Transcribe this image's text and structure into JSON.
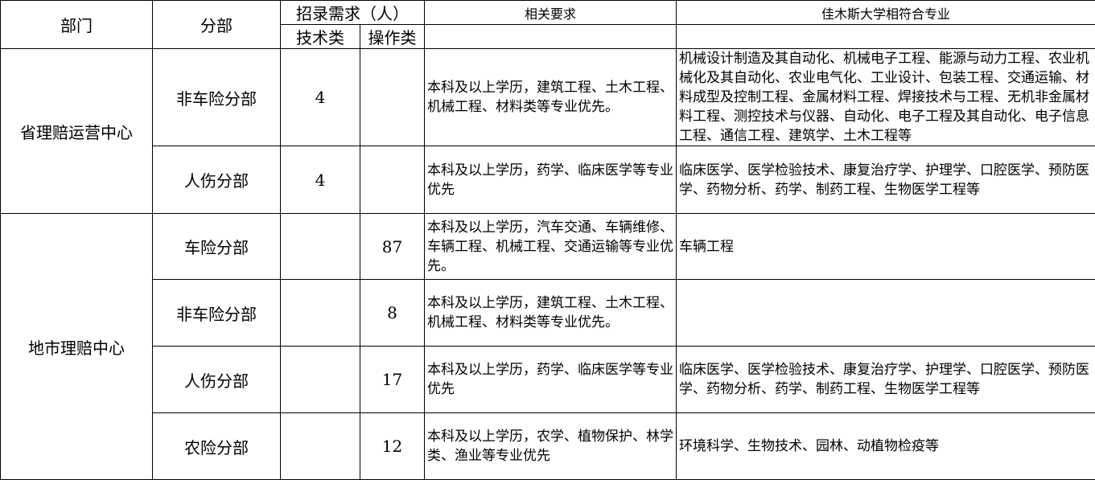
{
  "header": {
    "dept": "部门",
    "branch": "分部",
    "demand": "招录需求（人）",
    "tech": "技术类",
    "ops": "操作类",
    "requirements": "相关要求",
    "majors": "佳木斯大学相符合专业"
  },
  "groups": [
    {
      "dept": "省理赔运营中心",
      "rows": [
        {
          "branch": "非车险分部",
          "tech": "4",
          "ops": "",
          "requirements": "本科及以上学历，建筑工程、土木工程、机械工程、材料类等专业优先。",
          "majors": "机械设计制造及其自动化、机械电子工程、能源与动力工程、农业机械化及其自动化、农业电气化、工业设计、包装工程、交通运输、材料成型及控制工程、金属材料工程、焊接技术与工程、无机非金属材料工程、测控技术与仪器、自动化、电子工程及其自动化、电子信息工程、通信工程、建筑学、土木工程等"
        },
        {
          "branch": "人伤分部",
          "tech": "4",
          "ops": "",
          "requirements": "本科及以上学历，药学、临床医学等专业优先",
          "majors": "临床医学、医学检验技术、康复治疗学、护理学、口腔医学、预防医学、药物分析、药学、制药工程、生物医学工程等"
        }
      ]
    },
    {
      "dept": "地市理赔中心",
      "rows": [
        {
          "branch": "车险分部",
          "tech": "",
          "ops": "87",
          "requirements": "本科及以上学历，汽车交通、车辆维修、车辆工程、机械工程、交通运输等专业优先。",
          "majors": "车辆工程"
        },
        {
          "branch": "非车险分部",
          "tech": "",
          "ops": "8",
          "requirements": "本科及以上学历，建筑工程、土木工程、机械工程、材料类等专业优先。",
          "majors": ""
        },
        {
          "branch": "人伤分部",
          "tech": "",
          "ops": "17",
          "requirements": "本科及以上学历，药学、临床医学等专业优先",
          "majors": "临床医学、医学检验技术、康复治疗学、护理学、口腔医学、预防医学、药物分析、药学、制药工程、生物医学工程等"
        },
        {
          "branch": "农险分部",
          "tech": "",
          "ops": "12",
          "requirements": "本科及以上学历，农学、植物保护、林学类、渔业等专业优先",
          "majors": "环境科学、生物技术、园林、动植物检疫等"
        }
      ]
    }
  ]
}
